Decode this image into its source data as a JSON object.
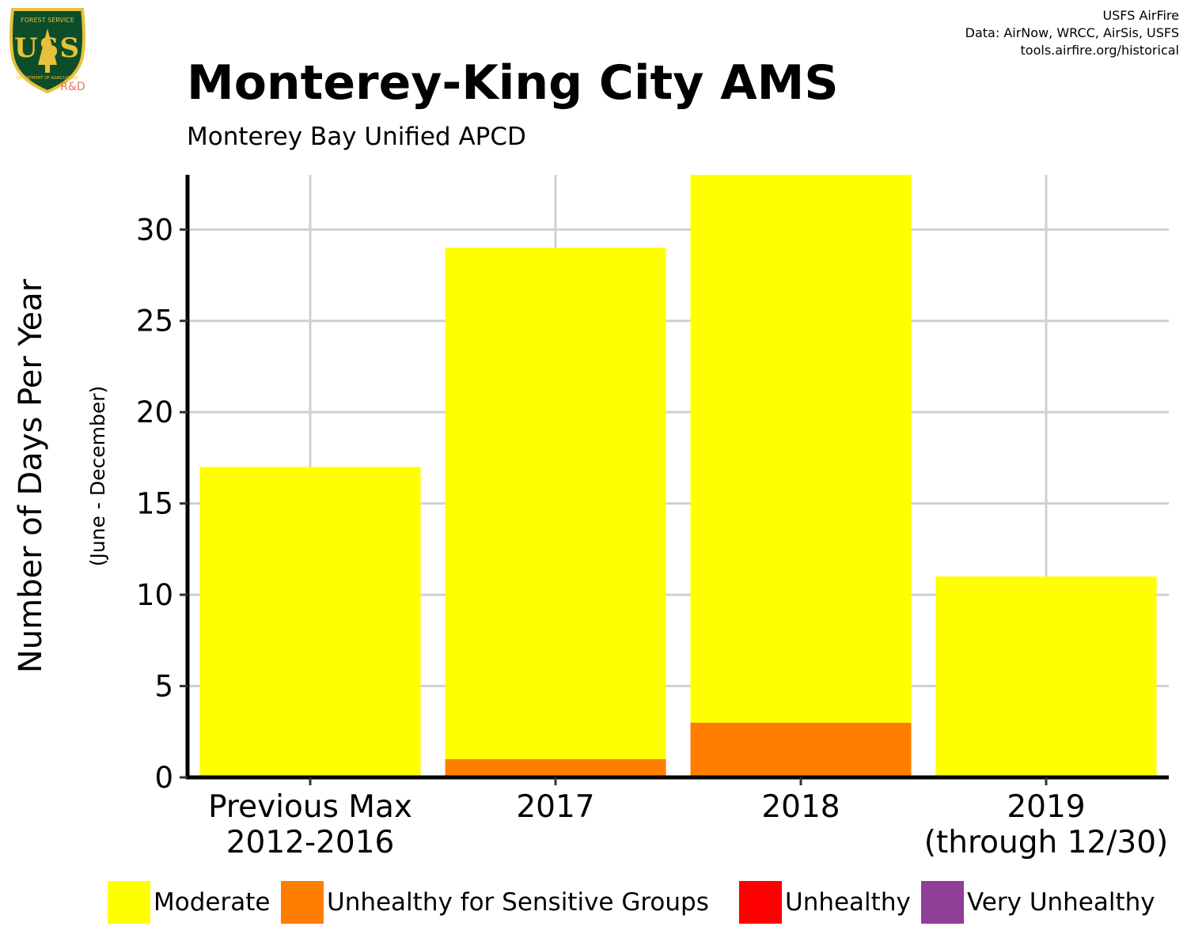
{
  "header": {
    "logo": {
      "text_top": "FOREST SERVICE",
      "letters": "USS",
      "text_bottom": "DEPARTMENT OF AGRICULTURE",
      "tag": "R&D",
      "colors": {
        "shield": "#0d4d2a",
        "border": "#e8c13a",
        "tag": "#e8735a"
      }
    },
    "credits": [
      "USFS AirFire",
      "Data: AirNow, WRCC, AirSis, USFS",
      "tools.airfire.org/historical"
    ]
  },
  "chart_data": {
    "type": "bar",
    "stacked": true,
    "title": "Monterey-King City AMS",
    "subtitle": "Monterey Bay Unified APCD",
    "ylabel": "Number of Days Per Year",
    "ylabel_sub": "(June - December)",
    "categories": [
      [
        "Previous Max",
        "2012-2016"
      ],
      [
        "2017"
      ],
      [
        "2018"
      ],
      [
        "2019",
        "(through 12/30)"
      ]
    ],
    "series": [
      {
        "name": "Unhealthy for Sensitive Groups",
        "color": "#ff7e00",
        "values": [
          0,
          1,
          3,
          0
        ]
      },
      {
        "name": "Moderate",
        "color": "#ffff00",
        "values": [
          17,
          28,
          30,
          11
        ]
      },
      {
        "name": "Unhealthy",
        "color": "#ff0000",
        "values": [
          0,
          0,
          0,
          0
        ]
      },
      {
        "name": "Very Unhealthy",
        "color": "#8f3f97",
        "values": [
          0,
          0,
          0,
          0
        ]
      }
    ],
    "stack_order": [
      "Unhealthy for Sensitive Groups",
      "Moderate",
      "Unhealthy",
      "Very Unhealthy"
    ],
    "ylim": [
      0,
      33
    ],
    "yticks": [
      0,
      5,
      10,
      15,
      20,
      25,
      30
    ],
    "grid": true,
    "legend_position": "bottom",
    "legend": [
      {
        "name": "Moderate",
        "color": "#ffff00"
      },
      {
        "name": "Unhealthy for Sensitive Groups",
        "color": "#ff7e00"
      },
      {
        "name": "Unhealthy",
        "color": "#ff0000"
      },
      {
        "name": "Very Unhealthy",
        "color": "#8f3f97"
      }
    ]
  }
}
